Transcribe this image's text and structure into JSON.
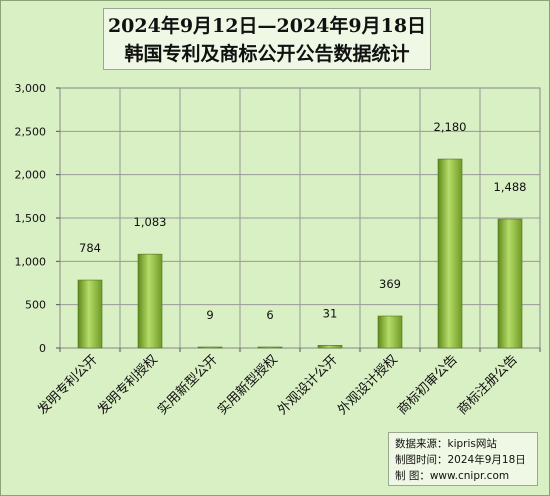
{
  "chart_data": {
    "type": "bar",
    "title_line1": "2024年9月12日—2024年9月18日",
    "title_line2": "韩国专利及商标公开公告数据统计",
    "categories": [
      "发明专利公开",
      "发明专利授权",
      "实用新型公开",
      "实用新型授权",
      "外观设计公开",
      "外观设计授权",
      "商标初审公告",
      "商标注册公告"
    ],
    "values": [
      784,
      1083,
      9,
      6,
      31,
      369,
      2180,
      1488
    ],
    "value_labels": [
      "784",
      "1,083",
      "9",
      "6",
      "31",
      "369",
      "2,180",
      "1,488"
    ],
    "ylim": [
      0,
      3000
    ],
    "yticks": [
      "0",
      "500",
      "1,000",
      "1,500",
      "2,000",
      "2,500",
      "3,000"
    ],
    "ytick_values": [
      0,
      500,
      1000,
      1500,
      2000,
      2500,
      3000
    ],
    "grid": true,
    "bar_color": "#8dbb3a"
  },
  "source": {
    "line1": "数据来源：kipris网站",
    "line2": "制图时间：2024年9月18日",
    "line3": "制    图：www.cnipr.com"
  }
}
